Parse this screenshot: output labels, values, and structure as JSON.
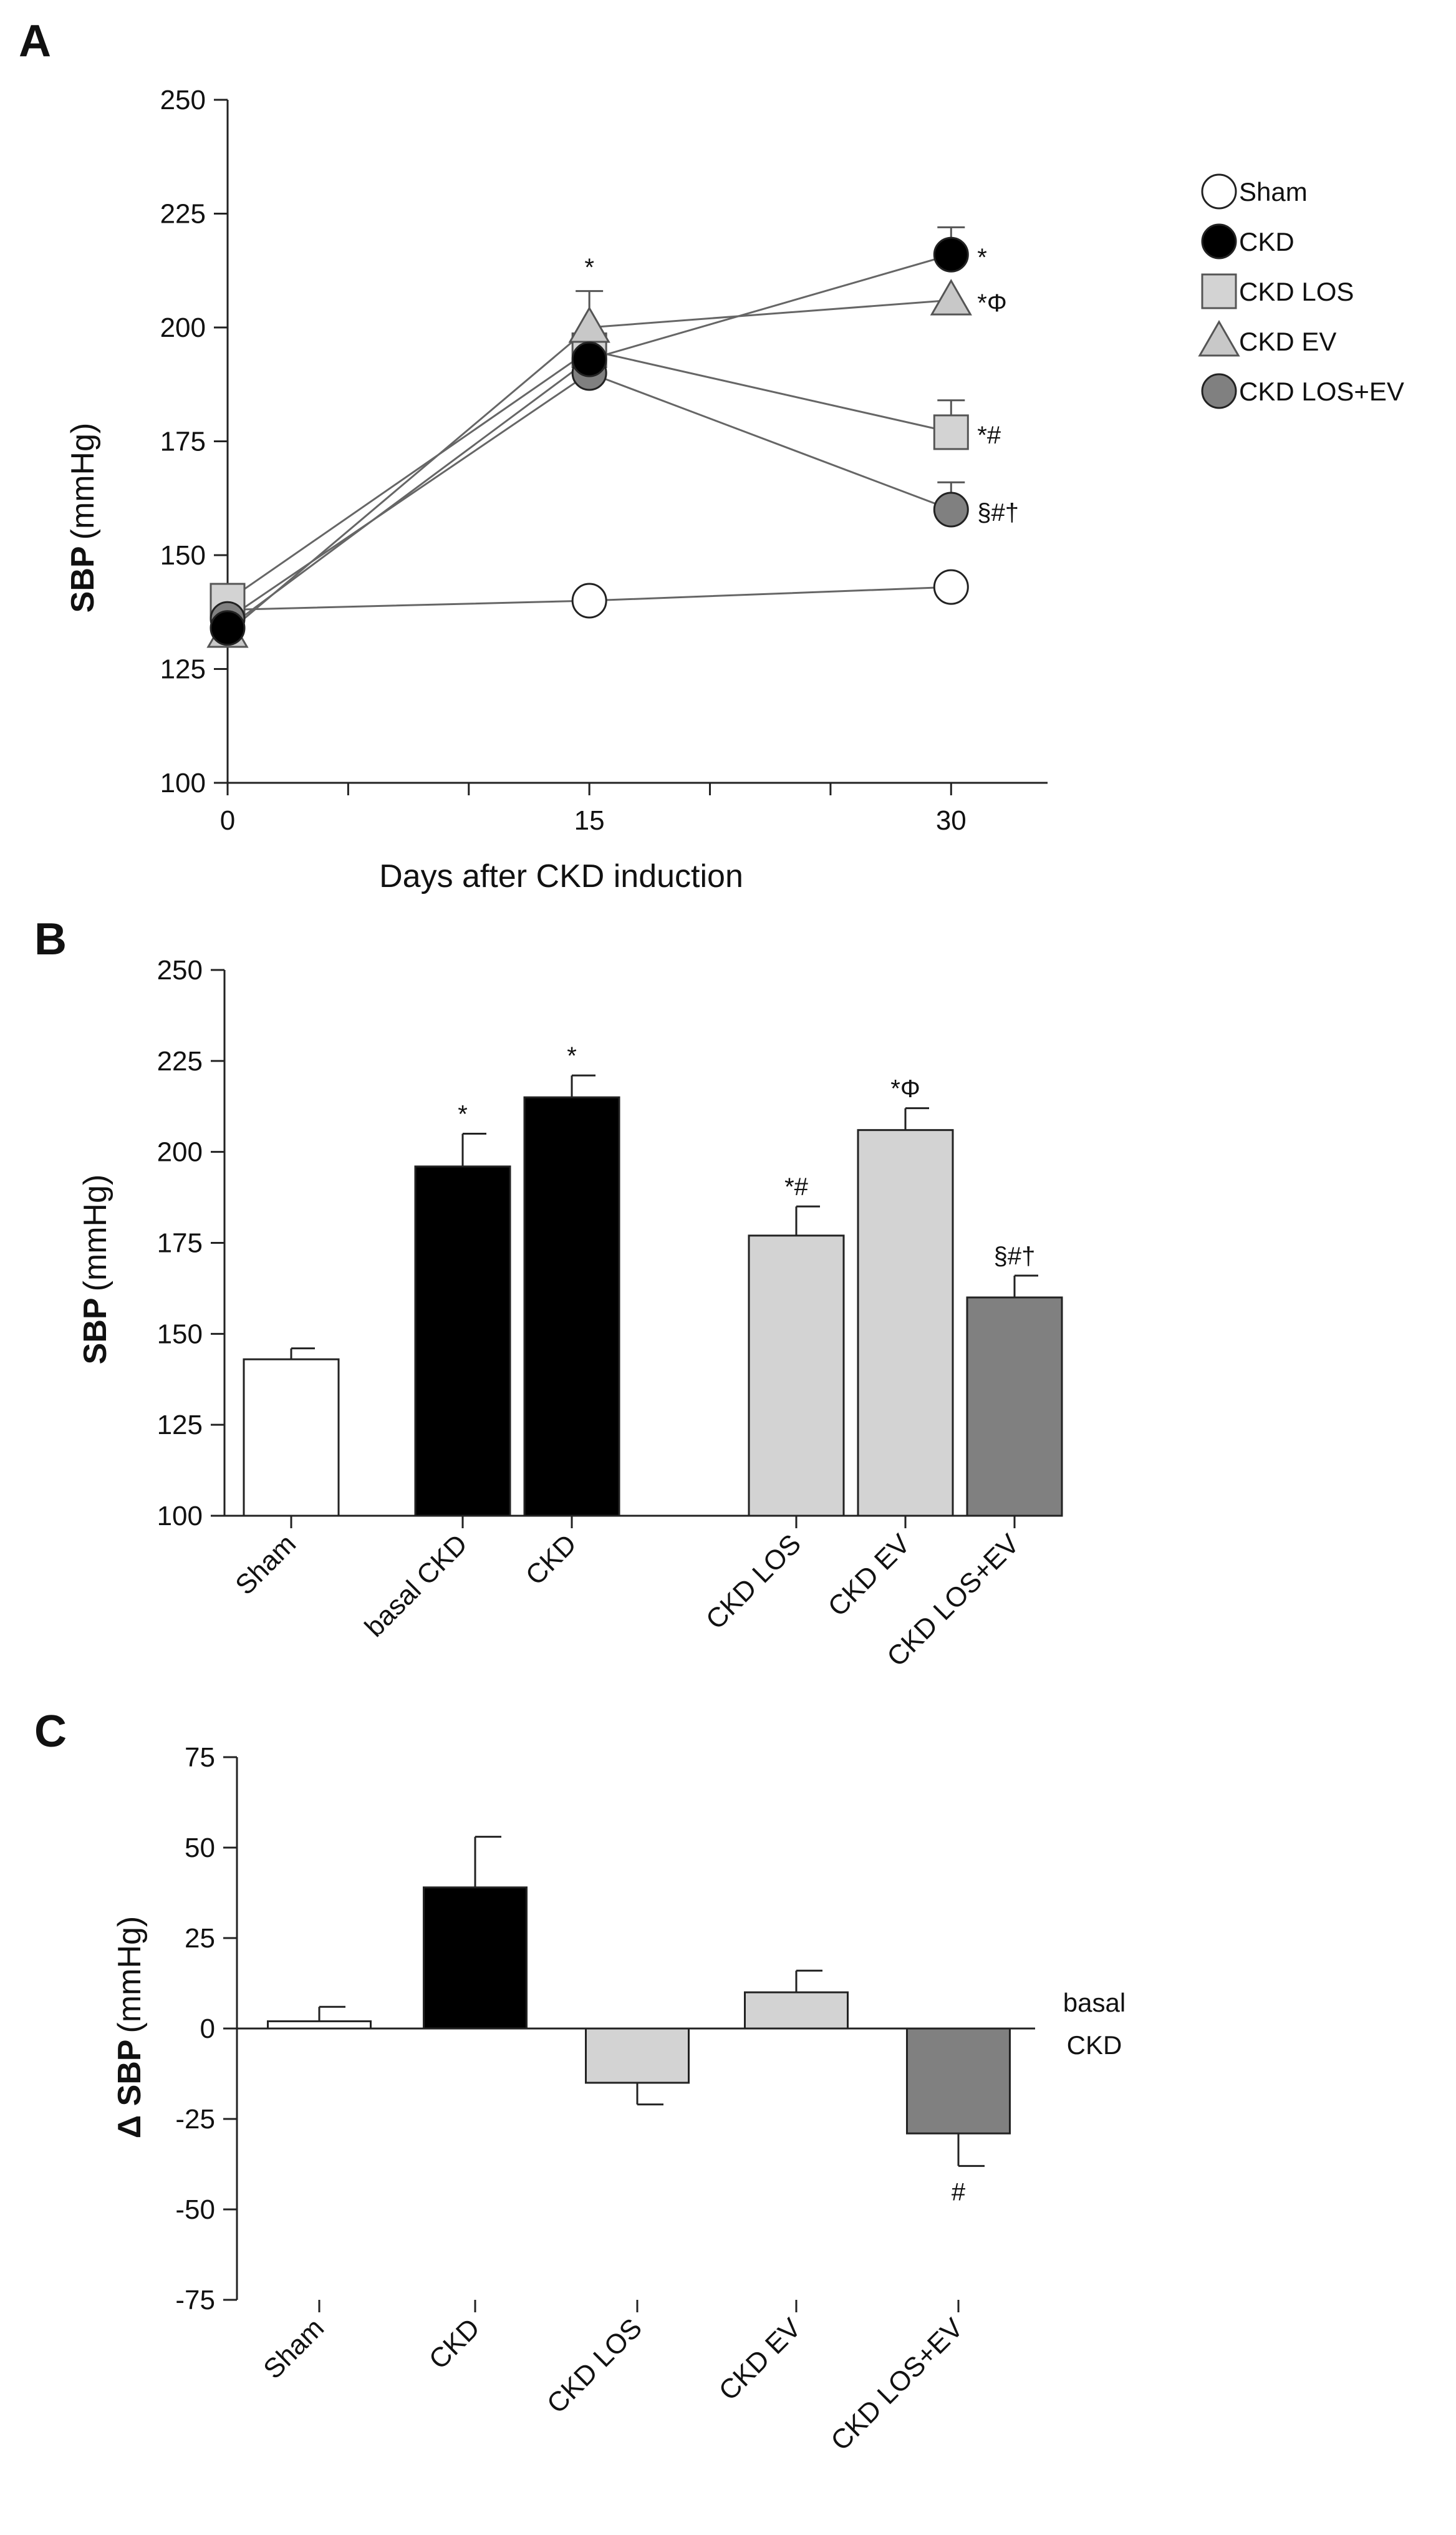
{
  "panels": {
    "a": {
      "letter": "A"
    },
    "b": {
      "letter": "B"
    },
    "c": {
      "letter": "C"
    }
  },
  "chart_data": [
    {
      "type": "line",
      "panel": "A",
      "xlabel": "Days after CKD induction",
      "ylabel_bold": "SBP",
      "ylabel_unit": "(mmHg)",
      "x": [
        0,
        15,
        30
      ],
      "xlim": [
        0,
        34
      ],
      "ylim": [
        100,
        250
      ],
      "yticks": [
        100,
        125,
        150,
        175,
        200,
        225,
        250
      ],
      "xticks": [
        0,
        15,
        30
      ],
      "legend_position": "right",
      "series": [
        {
          "name": "Sham",
          "marker": "circle",
          "fill": "#ffffff",
          "values": [
            138,
            140,
            143
          ],
          "errors": [
            0,
            0,
            0
          ],
          "end_label": ""
        },
        {
          "name": "CKD",
          "marker": "circle",
          "fill": "#000000",
          "values": [
            134,
            193,
            216
          ],
          "errors": [
            0,
            0,
            6
          ],
          "end_label": "*"
        },
        {
          "name": "CKD LOS",
          "marker": "square",
          "fill": "#d3d3d3",
          "values": [
            140,
            195,
            177
          ],
          "errors": [
            0,
            0,
            7
          ],
          "end_label": "*#"
        },
        {
          "name": "CKD EV",
          "marker": "triangle",
          "fill": "#c8c8c8",
          "values": [
            133,
            200,
            206
          ],
          "errors": [
            0,
            8,
            0
          ],
          "end_label": "*Φ"
        },
        {
          "name": "CKD LOS+EV",
          "marker": "circle",
          "fill": "#808080",
          "values": [
            136,
            190,
            160
          ],
          "errors": [
            0,
            0,
            6
          ],
          "end_label": "§#†"
        }
      ],
      "annotations": [
        {
          "x": 15,
          "y": 210,
          "text": "*"
        }
      ]
    },
    {
      "type": "bar",
      "panel": "B",
      "ylabel_bold": "SBP",
      "ylabel_unit": "(mmHg)",
      "ylim": [
        100,
        250
      ],
      "yticks": [
        100,
        125,
        150,
        175,
        200,
        225,
        250
      ],
      "categories": [
        "Sham",
        "basal CKD",
        "CKD",
        "CKD LOS",
        "CKD EV",
        "CKD LOS+EV"
      ],
      "values": [
        143,
        196,
        215,
        177,
        206,
        160
      ],
      "errors": [
        3,
        9,
        6,
        8,
        6,
        6
      ],
      "fills": [
        "#ffffff",
        "#000000",
        "#000000",
        "#d3d3d3",
        "#d3d3d3",
        "#808080"
      ],
      "labels": [
        "",
        "*",
        "*",
        "*#",
        "*Φ",
        "§#†"
      ]
    },
    {
      "type": "bar",
      "panel": "C",
      "ylabel_bold": "Δ SBP",
      "ylabel_unit": "(mmHg)",
      "ylim": [
        -75,
        75
      ],
      "yticks": [
        -75,
        -50,
        -25,
        0,
        25,
        50,
        75
      ],
      "categories": [
        "Sham",
        "CKD",
        "CKD LOS",
        "CKD EV",
        "CKD LOS+EV"
      ],
      "values": [
        2,
        39,
        -15,
        10,
        -29
      ],
      "errors": [
        4,
        14,
        6,
        6,
        9
      ],
      "fills": [
        "#ffffff",
        "#000000",
        "#d3d3d3",
        "#d3d3d3",
        "#808080"
      ],
      "labels": [
        "",
        "",
        "",
        "",
        "#"
      ],
      "reference_label": [
        "basal",
        "CKD"
      ]
    }
  ]
}
